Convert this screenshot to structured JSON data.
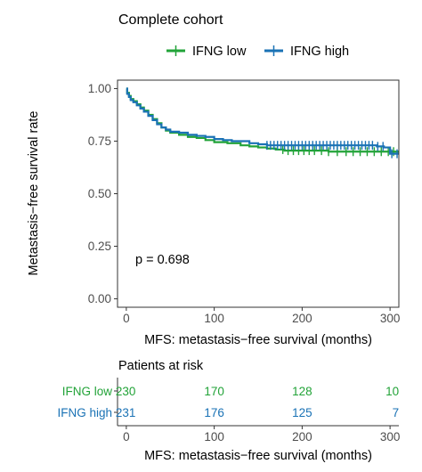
{
  "chart_data": {
    "type": "line",
    "title": "Complete cohort",
    "xlabel": "MFS: metastasis−free survival (months)",
    "ylabel": "Metastasis−free survival rate",
    "xlim": [
      -10,
      310
    ],
    "ylim": [
      -0.04,
      1.04
    ],
    "x_ticks": [
      0,
      100,
      200,
      300
    ],
    "x_tick_labels": [
      "0",
      "100",
      "200",
      "300"
    ],
    "y_ticks": [
      0,
      0.25,
      0.5,
      0.75,
      1.0
    ],
    "y_tick_labels": [
      "0.00",
      "0.25",
      "0.50",
      "0.75",
      "1.00"
    ],
    "grid": false,
    "legend_position": "top",
    "annotation": "p = 0.698",
    "series": [
      {
        "name": "IFNG low",
        "color": "#22a338",
        "points": [
          [
            0,
            1.0
          ],
          [
            1,
            0.98
          ],
          [
            3,
            0.965
          ],
          [
            5,
            0.95
          ],
          [
            8,
            0.94
          ],
          [
            12,
            0.925
          ],
          [
            16,
            0.91
          ],
          [
            20,
            0.895
          ],
          [
            25,
            0.875
          ],
          [
            30,
            0.855
          ],
          [
            35,
            0.835
          ],
          [
            40,
            0.815
          ],
          [
            45,
            0.8
          ],
          [
            50,
            0.79
          ],
          [
            60,
            0.78
          ],
          [
            70,
            0.77
          ],
          [
            80,
            0.765
          ],
          [
            90,
            0.755
          ],
          [
            100,
            0.745
          ],
          [
            115,
            0.74
          ],
          [
            130,
            0.73
          ],
          [
            140,
            0.725
          ],
          [
            150,
            0.72
          ],
          [
            160,
            0.715
          ],
          [
            170,
            0.71
          ],
          [
            180,
            0.705
          ],
          [
            200,
            0.705
          ],
          [
            230,
            0.7
          ],
          [
            260,
            0.7
          ],
          [
            280,
            0.7
          ],
          [
            300,
            0.7
          ],
          [
            310,
            0.7
          ]
        ],
        "censor_x": [
          178,
          184,
          190,
          196,
          202,
          208,
          214,
          222,
          230,
          240,
          250,
          258,
          266,
          274,
          282,
          290,
          298,
          304
        ]
      },
      {
        "name": "IFNG high",
        "color": "#1a72b5",
        "points": [
          [
            0,
            1.0
          ],
          [
            1,
            0.975
          ],
          [
            3,
            0.96
          ],
          [
            5,
            0.945
          ],
          [
            8,
            0.935
          ],
          [
            12,
            0.92
          ],
          [
            16,
            0.905
          ],
          [
            20,
            0.89
          ],
          [
            25,
            0.87
          ],
          [
            30,
            0.85
          ],
          [
            35,
            0.83
          ],
          [
            40,
            0.815
          ],
          [
            45,
            0.805
          ],
          [
            50,
            0.795
          ],
          [
            60,
            0.79
          ],
          [
            70,
            0.78
          ],
          [
            80,
            0.775
          ],
          [
            90,
            0.77
          ],
          [
            100,
            0.76
          ],
          [
            110,
            0.755
          ],
          [
            120,
            0.75
          ],
          [
            140,
            0.74
          ],
          [
            150,
            0.735
          ],
          [
            160,
            0.73
          ],
          [
            200,
            0.73
          ],
          [
            240,
            0.73
          ],
          [
            270,
            0.73
          ],
          [
            285,
            0.725
          ],
          [
            293,
            0.72
          ],
          [
            300,
            0.69
          ],
          [
            310,
            0.69
          ]
        ],
        "censor_x": [
          160,
          164,
          168,
          172,
          176,
          180,
          184,
          188,
          192,
          196,
          200,
          204,
          208,
          212,
          216,
          220,
          224,
          228,
          232,
          236,
          240,
          244,
          248,
          252,
          256,
          260,
          264,
          268,
          272,
          276,
          280,
          286,
          292,
          302,
          308
        ]
      }
    ],
    "risk_table": {
      "title": "Patients at risk",
      "xlabel": "MFS: metastasis−free survival (months)",
      "times": [
        0,
        100,
        200,
        300
      ],
      "time_labels": [
        "0",
        "100",
        "200",
        "300"
      ],
      "rows": [
        {
          "name": "IFNG low",
          "color": "#22a338",
          "values": [
            "230",
            "170",
            "128",
            "10"
          ]
        },
        {
          "name": "IFNG high",
          "color": "#1a72b5",
          "values": [
            "231",
            "176",
            "125",
            "7"
          ]
        }
      ]
    }
  }
}
